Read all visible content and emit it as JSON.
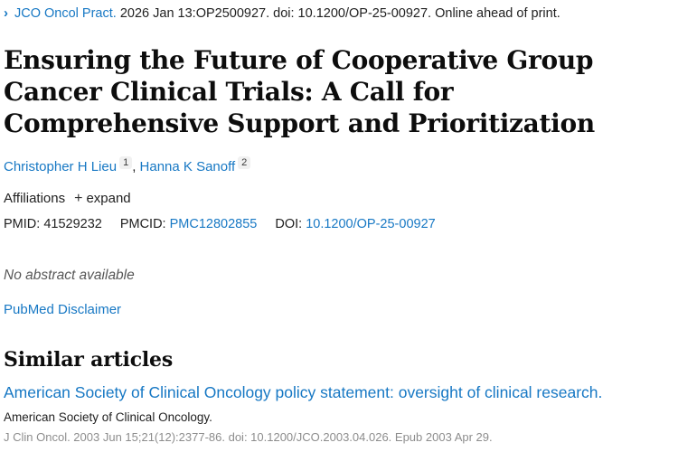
{
  "colors": {
    "link": "#1778c4",
    "text": "#212121",
    "heading": "#0d0d0d",
    "muted_italic": "#575757",
    "citation_gray": "#8d8d8d",
    "badge_bg": "#f1f1f1"
  },
  "icons": {
    "chevron_right": "›",
    "plus": "+"
  },
  "cite_header": {
    "journal": "JCO Oncol Pract.",
    "details": "2026 Jan 13:OP2500927. doi: 10.1200/OP-25-00927. Online ahead of print."
  },
  "article": {
    "title": "Ensuring the Future of Cooperative Group Cancer Clinical Trials: A Call for Comprehensive Support and Prioritization"
  },
  "authors": {
    "separator": ", ",
    "list": [
      {
        "name": "Christopher H Lieu",
        "sup": "1"
      },
      {
        "name": "Hanna K Sanoff",
        "sup": "2"
      }
    ]
  },
  "affiliations": {
    "label": "Affiliations",
    "expand_label": "expand"
  },
  "identifiers": {
    "pmid_label": "PMID:",
    "pmid": "41529232",
    "pmcid_label": "PMCID:",
    "pmcid": "PMC12802855",
    "doi_label": "DOI:",
    "doi": "10.1200/OP-25-00927"
  },
  "abstract": {
    "empty_message": "No abstract available"
  },
  "links": {
    "disclaimer": "PubMed Disclaimer"
  },
  "similar_articles": {
    "heading": "Similar articles",
    "items": [
      {
        "title": "American Society of Clinical Oncology policy statement: oversight of clinical research.",
        "authors": "American Society of Clinical Oncology.",
        "citation": "J Clin Oncol. 2003 Jun 15;21(12):2377-86. doi: 10.1200/JCO.2003.04.026. Epub 2003 Apr 29."
      }
    ]
  }
}
